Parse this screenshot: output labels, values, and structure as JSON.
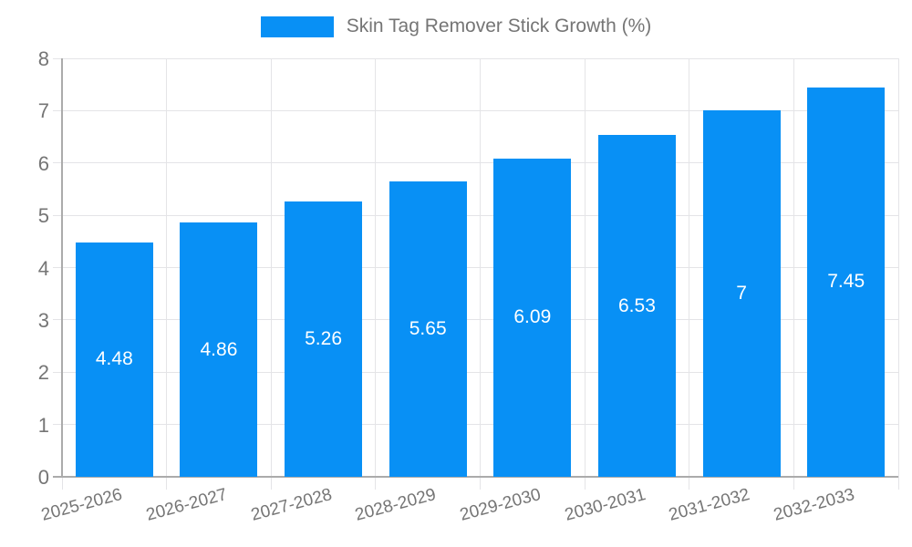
{
  "legend": {
    "label": "Skin Tag Remover Stick Growth (%)"
  },
  "chart_data": {
    "type": "bar",
    "title": "Skin Tag Remover Stick Growth (%)",
    "categories": [
      "2025-2026",
      "2026-2027",
      "2027-2028",
      "2028-2029",
      "2029-2030",
      "2030-2031",
      "2031-2032",
      "2032-2033"
    ],
    "values": [
      4.48,
      4.86,
      5.26,
      5.65,
      6.09,
      6.53,
      7,
      7.45
    ],
    "value_labels": [
      "4.48",
      "4.86",
      "5.26",
      "5.65",
      "6.09",
      "6.53",
      "7",
      "7.45"
    ],
    "xlabel": "",
    "ylabel": "",
    "ylim": [
      0,
      8
    ],
    "yticks": [
      0,
      1,
      2,
      3,
      4,
      5,
      6,
      7,
      8
    ],
    "grid": true,
    "legend_position": "top",
    "x_label_rotation_deg": -15,
    "colors": {
      "bar": "#0890f5",
      "bar_value_label": "#ffffff",
      "grid": "#e4e4e7",
      "axis_line": "#ababab",
      "tick_label": "#757575",
      "legend_text": "#757575"
    }
  }
}
